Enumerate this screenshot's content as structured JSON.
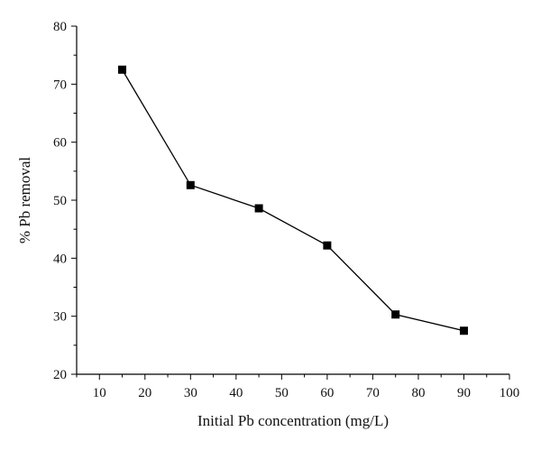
{
  "chart_data": {
    "type": "line",
    "xlabel": "Initial Pb concentration (mg/L)",
    "ylabel": "% Pb removal",
    "xlim": [
      5,
      100
    ],
    "ylim": [
      20,
      80
    ],
    "x_ticks": [
      10,
      20,
      30,
      40,
      50,
      60,
      70,
      80,
      90,
      100
    ],
    "y_ticks": [
      20,
      30,
      40,
      50,
      60,
      70,
      80
    ],
    "grid": false,
    "series": [
      {
        "x": [
          15,
          30,
          45,
          60,
          75,
          90
        ],
        "y": [
          72.5,
          52.6,
          48.6,
          42.2,
          30.3,
          27.5
        ],
        "marker": "square",
        "color": "#000000"
      }
    ]
  }
}
